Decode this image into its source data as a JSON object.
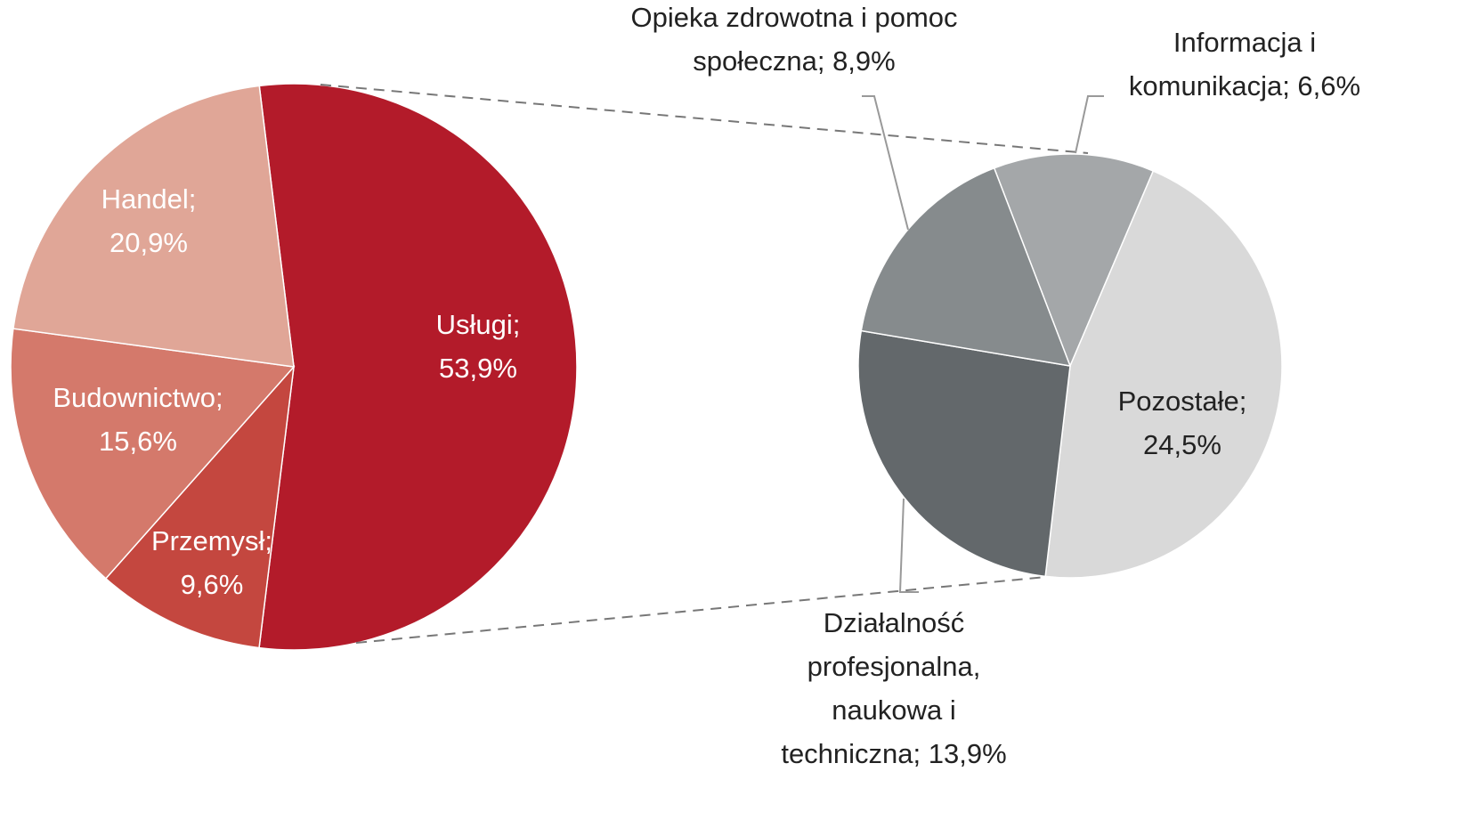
{
  "chart_data": [
    {
      "type": "pie",
      "values": [
        53.9,
        9.6,
        15.6,
        20.9
      ],
      "labels": [
        [
          "Usługi;",
          "53,9%"
        ],
        [
          "Przemysł;",
          "9,6%"
        ],
        [
          "Budownictwo;",
          "15,6%"
        ],
        [
          "Handel;",
          "20,9%"
        ]
      ],
      "colors": [
        "#b31b2a",
        "#c4473f",
        "#d4796b",
        "#e0a697"
      ]
    },
    {
      "type": "pie",
      "values": [
        6.6,
        24.5,
        13.9,
        8.9
      ],
      "labels": [
        [
          "Informacja i",
          "komunikacja; 6,6%"
        ],
        [
          "Pozostałe;",
          "24,5%"
        ],
        [
          "Działalność",
          "profesjonalna,",
          "naukowa i",
          "techniczna; 13,9%"
        ],
        [
          "Opieka zdrowotna i pomoc",
          "społeczna; 8,9%"
        ]
      ],
      "colors": [
        "#a4a7a9",
        "#d9d9d9",
        "#63686b",
        "#868b8d"
      ]
    }
  ]
}
